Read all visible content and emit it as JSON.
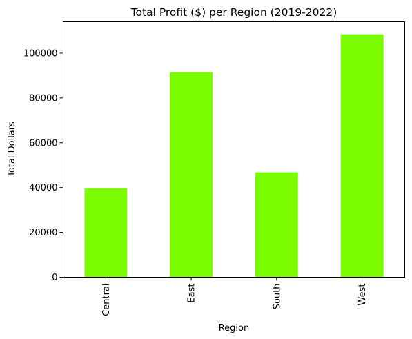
{
  "chart_data": {
    "type": "bar",
    "title": "Total Profit ($) per Region (2019-2022)",
    "xlabel": "Region",
    "ylabel": "Total Dollars",
    "categories": [
      "Central",
      "East",
      "South",
      "West"
    ],
    "values": [
      39700,
      91500,
      46800,
      108400
    ],
    "ylim": [
      0,
      114000
    ],
    "yticks": [
      0,
      20000,
      40000,
      60000,
      80000,
      100000
    ],
    "ytick_labels": [
      "0",
      "20000",
      "40000",
      "60000",
      "80000",
      "100000"
    ],
    "grid": false,
    "legend": "none",
    "bar_color": "#7cfc00"
  }
}
